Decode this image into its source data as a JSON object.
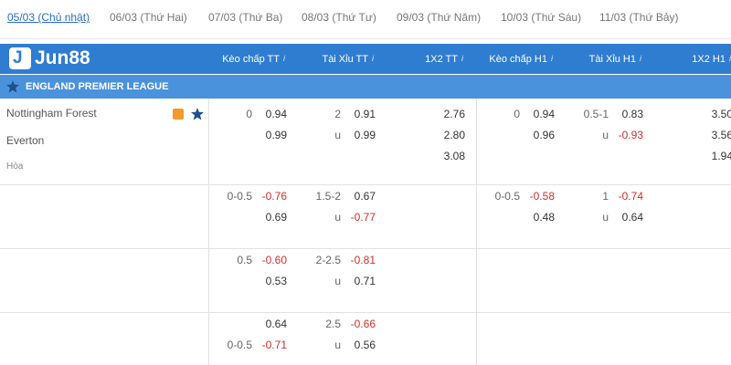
{
  "tabs": [
    "05/03 (Chủ nhật)",
    "06/03 (Thứ Hai)",
    "07/03 (Thứ Ba)",
    "08/03 (Thứ Tư)",
    "09/03 (Thứ Năm)",
    "10/03 (Thứ Sáu)",
    "11/03 (Thứ Bảy)"
  ],
  "logo": "Jun88",
  "columns": [
    "Kèo chấp TT",
    "Tài Xỉu TT",
    "1X2 TT",
    "Kèo chấp H1",
    "Tài Xỉu H1",
    "1X2 H1"
  ],
  "league": "ENGLAND PREMIER LEAGUE",
  "rows": [
    {
      "teams": [
        "Nottingham Forest",
        "Everton",
        "Hòa"
      ],
      "cols": [
        [
          [
            "0",
            "0.94"
          ],
          [
            null,
            "0.99"
          ]
        ],
        [
          [
            "2",
            "0.91"
          ],
          [
            "u",
            "0.99"
          ]
        ],
        [
          [
            "2.76"
          ],
          [
            "2.80"
          ],
          [
            "3.08"
          ]
        ],
        [
          [
            "0",
            "0.94"
          ],
          [
            null,
            "0.96"
          ]
        ],
        [
          [
            "0.5-1",
            "0.83"
          ],
          [
            "u",
            "-0.93"
          ]
        ],
        [
          [
            "3.50"
          ],
          [
            "3.56"
          ],
          [
            "1.94"
          ]
        ]
      ]
    },
    {
      "cols": [
        [
          [
            "0-0.5",
            "-0.76"
          ],
          [
            null,
            "0.69"
          ]
        ],
        [
          [
            "1.5-2",
            "0.67"
          ],
          [
            "u",
            "-0.77"
          ]
        ],
        [],
        [
          [
            "0-0.5",
            "-0.58"
          ],
          [
            null,
            "0.48"
          ]
        ],
        [
          [
            "1",
            "-0.74"
          ],
          [
            "u",
            "0.64"
          ]
        ],
        []
      ]
    },
    {
      "cols": [
        [
          [
            "0.5",
            "-0.60"
          ],
          [
            null,
            "0.53"
          ]
        ],
        [
          [
            "2-2.5",
            "-0.81"
          ],
          [
            "u",
            "0.71"
          ]
        ],
        [],
        [],
        [],
        []
      ]
    },
    {
      "cols": [
        [
          [
            null,
            "0.64"
          ],
          [
            "0-0.5",
            "-0.71"
          ]
        ],
        [
          [
            "2.5",
            "-0.66"
          ],
          [
            "u",
            "0.56"
          ]
        ],
        [],
        [],
        [],
        []
      ]
    }
  ]
}
